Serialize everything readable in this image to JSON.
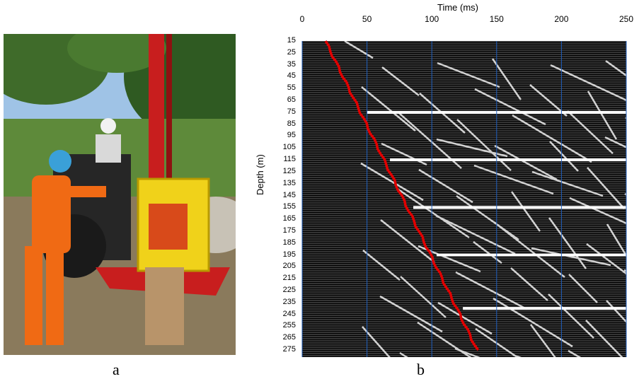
{
  "captions": {
    "a": "a",
    "b": "b"
  },
  "seismic_plot": {
    "x_axis_title": "Time (ms)",
    "y_axis_title": "Depth (m)",
    "x_ticks": [
      "0",
      "50",
      "100",
      "150",
      "200",
      "250"
    ],
    "x_range_ms": [
      0,
      250
    ],
    "y_ticks": [
      "15",
      "25",
      "35",
      "45",
      "55",
      "65",
      "75",
      "85",
      "95",
      "105",
      "115",
      "125",
      "135",
      "145",
      "155",
      "165",
      "175",
      "185",
      "195",
      "205",
      "215",
      "225",
      "235",
      "245",
      "255",
      "265",
      "275"
    ],
    "y_range_m": [
      15,
      275
    ],
    "first_break_pick_color": "#e00000",
    "trace_color": "#000000",
    "grid_color": "#1f5fbf"
  },
  "photo": {
    "description_icon": "field-photo-drilling-rig"
  }
}
